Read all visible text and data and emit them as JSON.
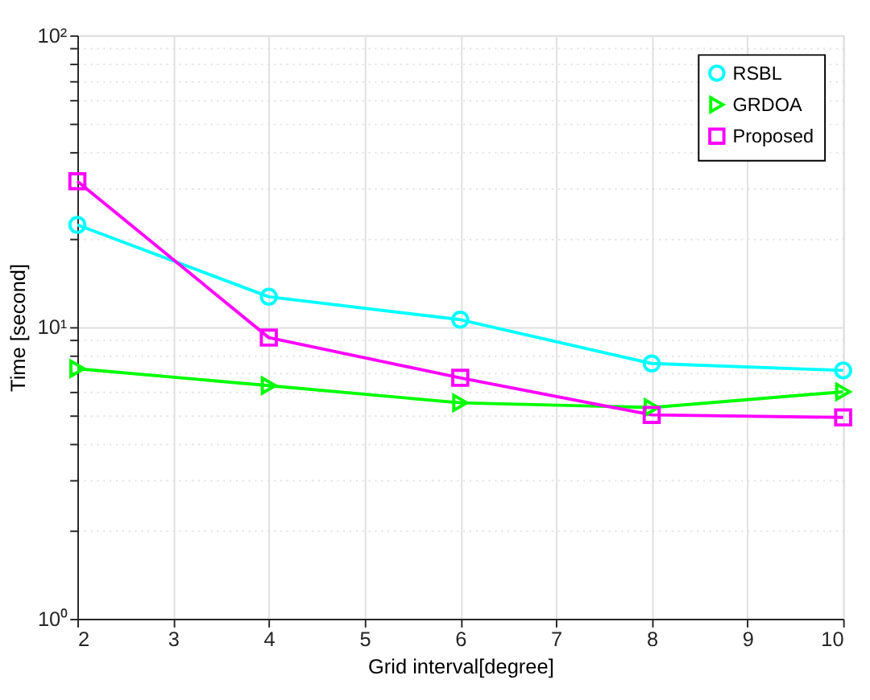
{
  "chart_data": {
    "type": "line",
    "xlabel": "Grid interval[degree]",
    "ylabel": "Time [second]",
    "x": [
      2,
      4,
      6,
      8,
      10
    ],
    "series": [
      {
        "name": "RSBL",
        "color": "#00ffff",
        "marker": "circle",
        "values": [
          22.4,
          12.7,
          10.6,
          7.5,
          7.1
        ]
      },
      {
        "name": "GRDOA",
        "color": "#00ff00",
        "marker": "triangle",
        "values": [
          7.2,
          6.3,
          5.5,
          5.3,
          6.0
        ]
      },
      {
        "name": "Proposed",
        "color": "#ff00ff",
        "marker": "square",
        "values": [
          31.6,
          9.2,
          6.7,
          5.0,
          4.9
        ]
      }
    ],
    "xlim": [
      2,
      10
    ],
    "xticks": [
      2,
      3,
      4,
      5,
      6,
      7,
      8,
      9,
      10
    ],
    "ylim": [
      1,
      100
    ],
    "log": true,
    "yticks": [
      {
        "value": 1,
        "label": "10⁰"
      },
      {
        "value": 2,
        "label": null
      },
      {
        "value": 3,
        "label": null
      },
      {
        "value": 4,
        "label": null
      },
      {
        "value": 5,
        "label": null
      },
      {
        "value": 6,
        "label": null
      },
      {
        "value": 7,
        "label": null
      },
      {
        "value": 8,
        "label": null
      },
      {
        "value": 9,
        "label": null
      },
      {
        "value": 10,
        "label": "10¹"
      },
      {
        "value": 20,
        "label": null
      },
      {
        "value": 30,
        "label": null
      },
      {
        "value": 40,
        "label": null
      },
      {
        "value": 50,
        "label": null
      },
      {
        "value": 60,
        "label": null
      },
      {
        "value": 70,
        "label": null
      },
      {
        "value": 80,
        "label": null
      },
      {
        "value": 90,
        "label": null
      },
      {
        "value": 100,
        "label": "10²"
      }
    ],
    "grid": true,
    "legend": "top right",
    "line_style": "solid"
  }
}
